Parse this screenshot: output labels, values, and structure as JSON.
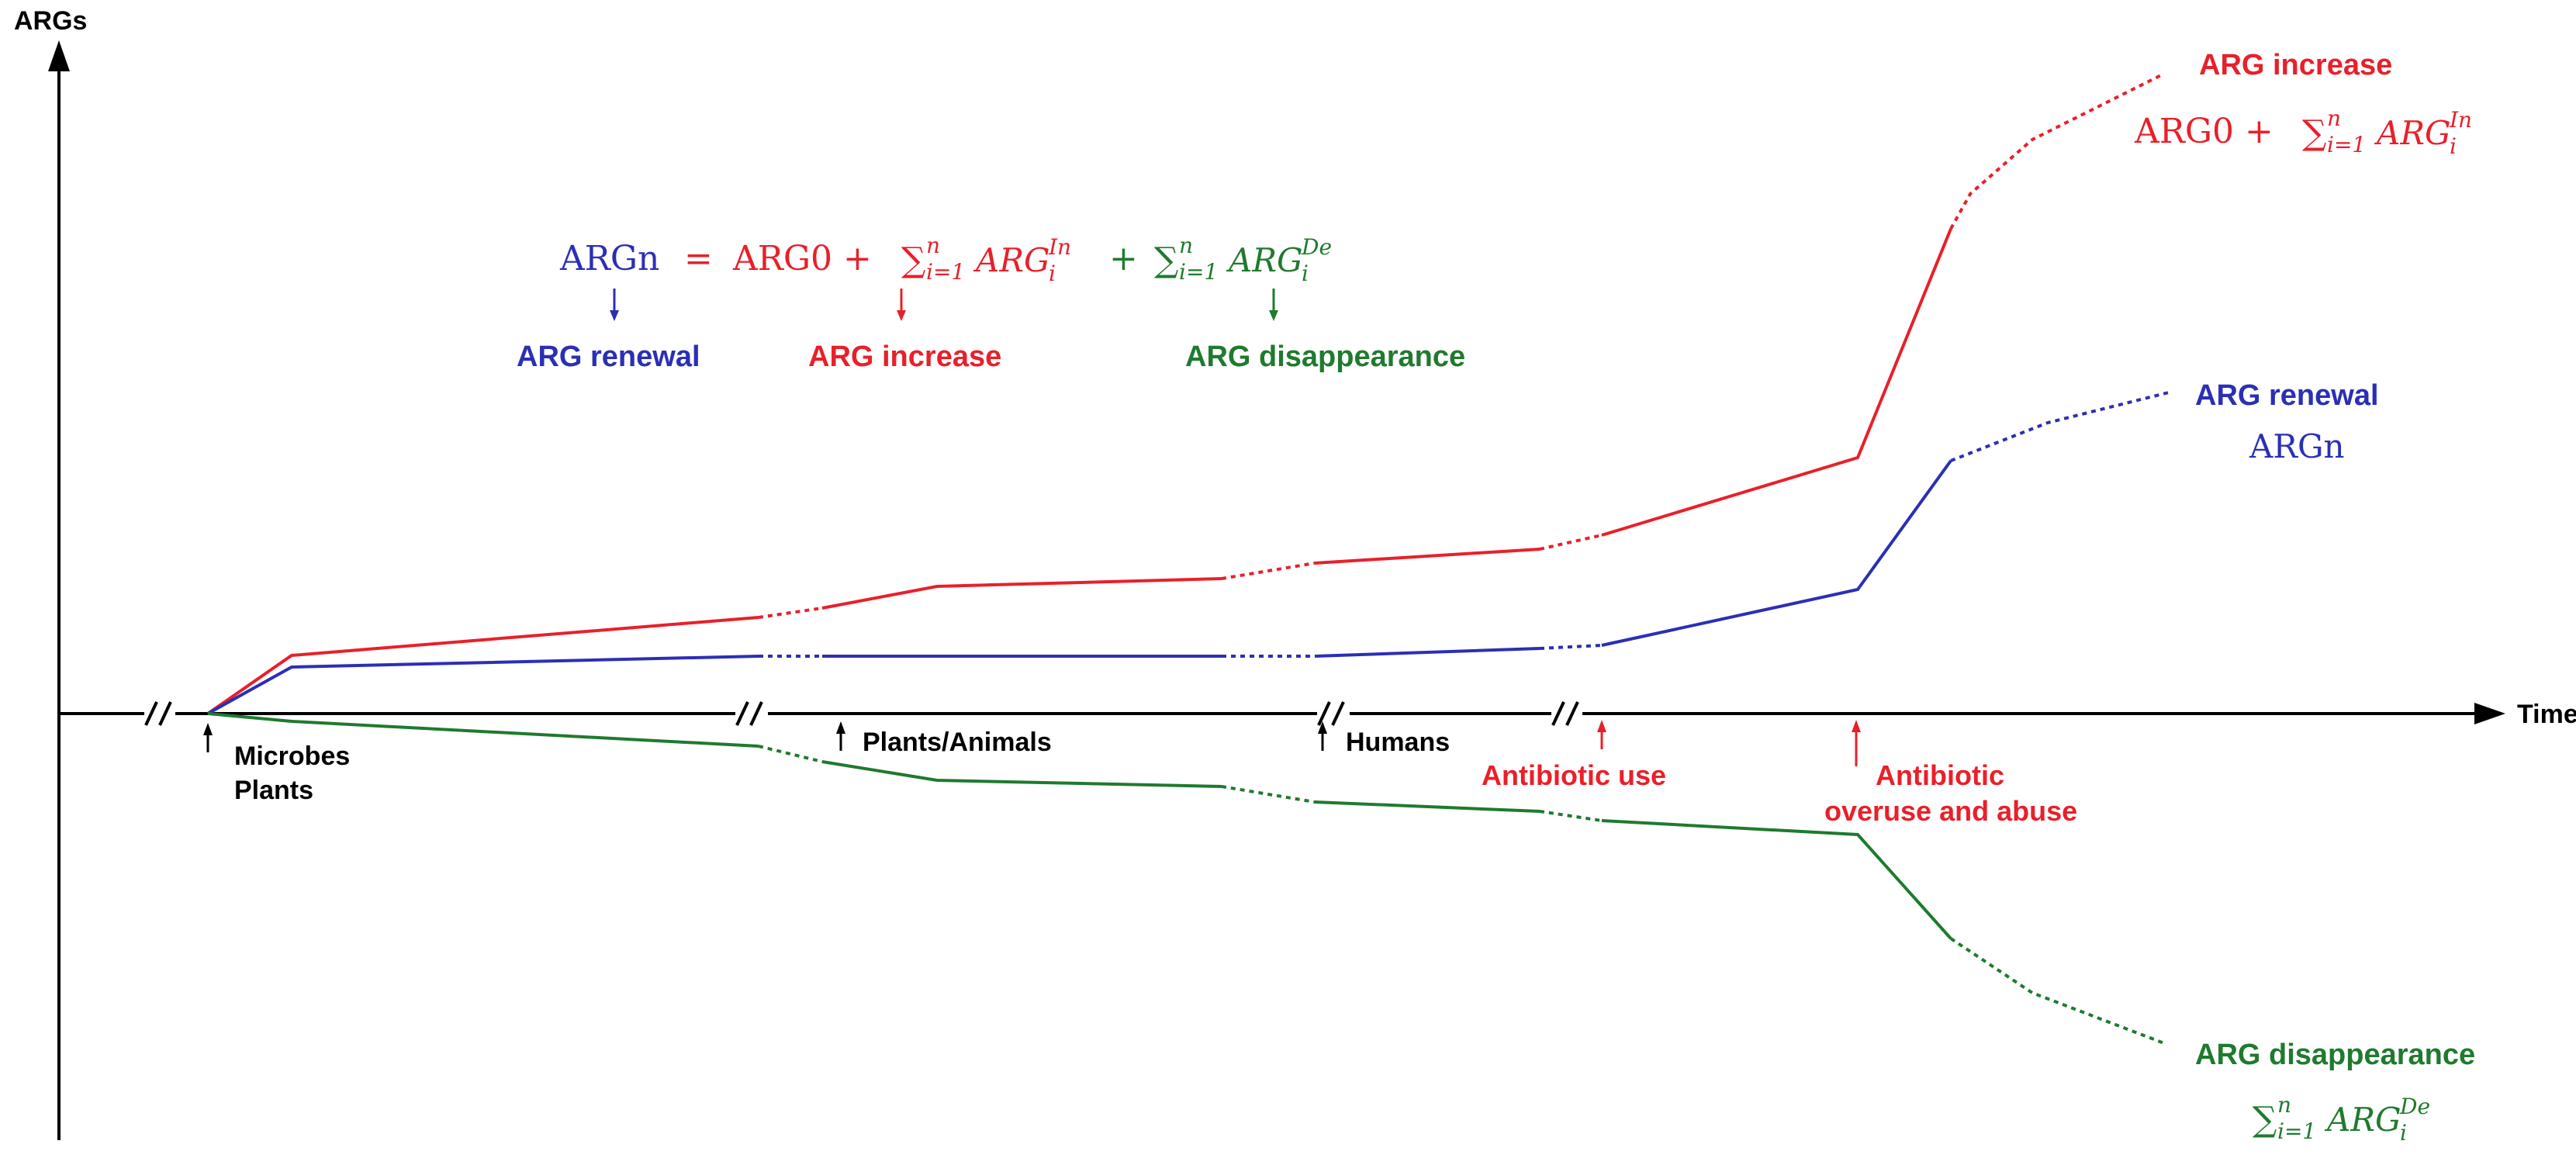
{
  "axes": {
    "y_label": "ARGs",
    "x_label": "Time node"
  },
  "colors": {
    "increase": "#e8202a",
    "renewal": "#2b2fb5",
    "disappearance": "#1f7a2e",
    "axis": "#000000"
  },
  "equation": {
    "lhs": "ARGn",
    "equals": "=",
    "term0": "ARG0 +",
    "sum_in": "∑",
    "sum_in_limits_sup": "n",
    "sum_in_limits_sub": "i=1",
    "sum_in_body": "ARG",
    "sum_in_sup": "In",
    "sum_in_sub": "i",
    "plus": "+",
    "sum_de": "∑",
    "sum_de_limits_sup": "n",
    "sum_de_limits_sub": "i=1",
    "sum_de_body": "ARG",
    "sum_de_sup": "De",
    "sum_de_sub": "i",
    "label_renewal": "ARG renewal",
    "label_increase": "ARG increase",
    "label_disappearance": "ARG disappearance"
  },
  "series_labels": {
    "increase_title": "ARG increase",
    "increase_formula_base": "ARG0 +",
    "renewal_title": "ARG renewal",
    "renewal_formula": "ARGn",
    "disappearance_title": "ARG disappearance"
  },
  "time_nodes": [
    {
      "line1": "Microbes",
      "line2": "Plants",
      "color": "black"
    },
    {
      "line1": "Plants/Animals",
      "line2": "",
      "color": "black"
    },
    {
      "line1": "Humans",
      "line2": "",
      "color": "black"
    },
    {
      "line1": "Antibiotic use",
      "line2": "",
      "color": "red"
    },
    {
      "line1": "Antibiotic",
      "line2": "overuse and abuse",
      "color": "red"
    }
  ],
  "axis_break_symbol": "//"
}
